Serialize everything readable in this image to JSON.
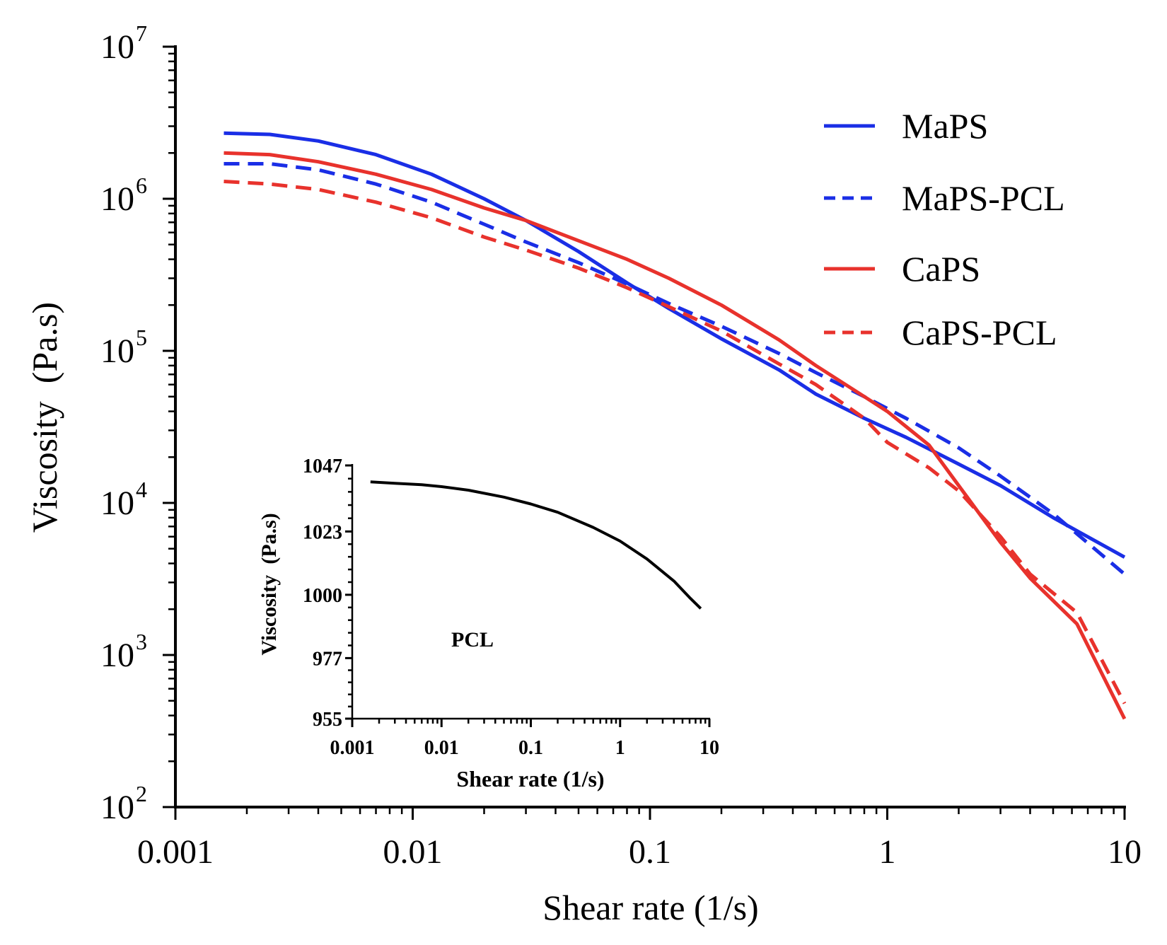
{
  "chart_data": [
    {
      "type": "line",
      "title": "",
      "xlabel": "Shear rate (1/s)",
      "ylabel": "Viscosity  (Pa.s)",
      "xscale": "log",
      "yscale": "log",
      "xlim": [
        0.001,
        10
      ],
      "ylim": [
        100,
        10000000
      ],
      "x_ticks": [
        "0.001",
        "0.01",
        "0.1",
        "1",
        "10"
      ],
      "y_ticks": [
        {
          "base": "10",
          "exp": "2"
        },
        {
          "base": "10",
          "exp": "3"
        },
        {
          "base": "10",
          "exp": "4"
        },
        {
          "base": "10",
          "exp": "5"
        },
        {
          "base": "10",
          "exp": "6"
        },
        {
          "base": "10",
          "exp": "7"
        }
      ],
      "legend_position": "top-right",
      "series": [
        {
          "name": "MaPS",
          "color": "#1a2ee6",
          "dash": "solid",
          "x": [
            0.0016,
            0.0025,
            0.004,
            0.007,
            0.012,
            0.02,
            0.03,
            0.05,
            0.08,
            0.12,
            0.2,
            0.35,
            0.5,
            0.8,
            1.2,
            2,
            3,
            5,
            10
          ],
          "y": [
            2700000,
            2650000,
            2400000,
            1950000,
            1450000,
            1000000,
            720000,
            450000,
            280000,
            190000,
            120000,
            75000,
            52000,
            36000,
            27000,
            18000,
            13000,
            8000,
            4400
          ]
        },
        {
          "name": "MaPS-PCL",
          "color": "#1a2ee6",
          "dash": "dashed",
          "x": [
            0.0016,
            0.0025,
            0.004,
            0.007,
            0.012,
            0.02,
            0.03,
            0.05,
            0.08,
            0.12,
            0.2,
            0.35,
            0.5,
            0.8,
            1.2,
            2,
            3,
            5,
            10
          ],
          "y": [
            1700000,
            1700000,
            1550000,
            1250000,
            950000,
            680000,
            520000,
            380000,
            275000,
            205000,
            145000,
            96000,
            72000,
            50000,
            36000,
            23000,
            15000,
            8500,
            3400
          ]
        },
        {
          "name": "CaPS",
          "color": "#e8322c",
          "dash": "solid",
          "x": [
            0.0016,
            0.0025,
            0.004,
            0.007,
            0.012,
            0.02,
            0.03,
            0.05,
            0.08,
            0.12,
            0.2,
            0.35,
            0.5,
            0.8,
            1.0,
            1.5,
            2,
            3,
            4,
            6.3,
            10
          ],
          "y": [
            2000000,
            1950000,
            1750000,
            1450000,
            1150000,
            870000,
            720000,
            530000,
            400000,
            300000,
            200000,
            118000,
            80000,
            50000,
            40000,
            24000,
            13000,
            5500,
            3200,
            1600,
            380
          ]
        },
        {
          "name": "CaPS-PCL",
          "color": "#e8322c",
          "dash": "dashed",
          "x": [
            0.0016,
            0.0025,
            0.004,
            0.007,
            0.012,
            0.02,
            0.03,
            0.05,
            0.08,
            0.12,
            0.2,
            0.35,
            0.5,
            0.8,
            1.0,
            1.5,
            2,
            3,
            4,
            6.3,
            10
          ],
          "y": [
            1300000,
            1250000,
            1150000,
            950000,
            750000,
            560000,
            460000,
            350000,
            260000,
            195000,
            135000,
            82000,
            60000,
            36000,
            25000,
            17000,
            12000,
            6000,
            3400,
            1900,
            480
          ]
        }
      ]
    },
    {
      "type": "line",
      "title": "",
      "annotation": "PCL",
      "xlabel": "Shear rate (1/s)",
      "ylabel": "Viscosity  (Pa.s)",
      "xscale": "log",
      "yscale": "linear",
      "xlim": [
        0.001,
        10
      ],
      "ylim": [
        955,
        1047
      ],
      "x_ticks": [
        "0.001",
        "0.01",
        "0.1",
        "1",
        "10"
      ],
      "y_ticks": [
        "955",
        "977",
        "1000",
        "1023",
        "1047"
      ],
      "y_tick_values": [
        955,
        977,
        1000,
        1023,
        1047
      ],
      "series": [
        {
          "name": "PCL",
          "color": "#000000",
          "dash": "solid",
          "x": [
            0.0016,
            0.003,
            0.006,
            0.01,
            0.02,
            0.05,
            0.1,
            0.2,
            0.5,
            1,
            2,
            4,
            6,
            8
          ],
          "y": [
            1041,
            1040.5,
            1040,
            1039.3,
            1038,
            1035.5,
            1033,
            1030,
            1024.5,
            1019.5,
            1013,
            1005,
            999,
            995
          ]
        }
      ]
    }
  ]
}
